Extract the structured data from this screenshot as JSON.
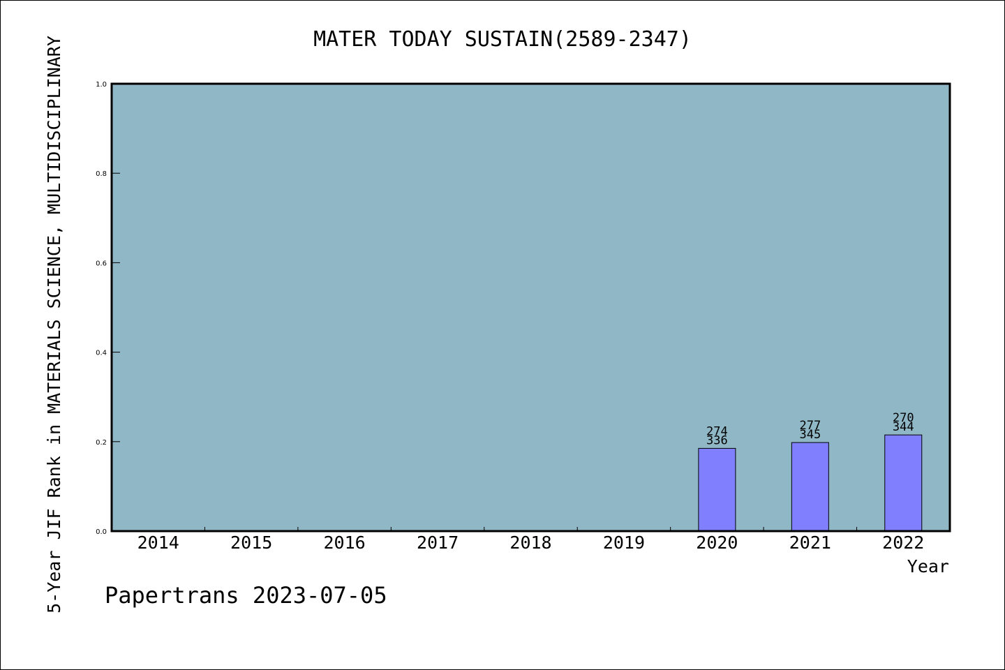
{
  "colors": {
    "plot_background": "#8fb7c5",
    "bar_fill": "#8080ff",
    "border": "#000000"
  },
  "chart_data": {
    "type": "bar",
    "title": "MATER TODAY SUSTAIN(2589-2347)",
    "ylabel": "5-Year JIF Rank in MATERIALS SCIENCE, MULTIDISCIPLINARY",
    "xlabel": "Year",
    "categories": [
      "2014",
      "2015",
      "2016",
      "2017",
      "2018",
      "2019",
      "2020",
      "2021",
      "2022"
    ],
    "values": [
      null,
      null,
      null,
      null,
      null,
      null,
      0.185,
      0.198,
      0.215
    ],
    "bar_labels": [
      null,
      null,
      null,
      null,
      null,
      null,
      {
        "rank": "274",
        "total": "336"
      },
      {
        "rank": "277",
        "total": "345"
      },
      {
        "rank": "270",
        "total": "344"
      }
    ],
    "ylim": [
      0,
      1.0
    ],
    "yticks": [
      "0.0",
      "0.2",
      "0.4",
      "0.6",
      "0.8",
      "1.0"
    ],
    "grid": false,
    "legend": "none"
  },
  "footer": {
    "credit": "Papertrans 2023-07-05"
  }
}
